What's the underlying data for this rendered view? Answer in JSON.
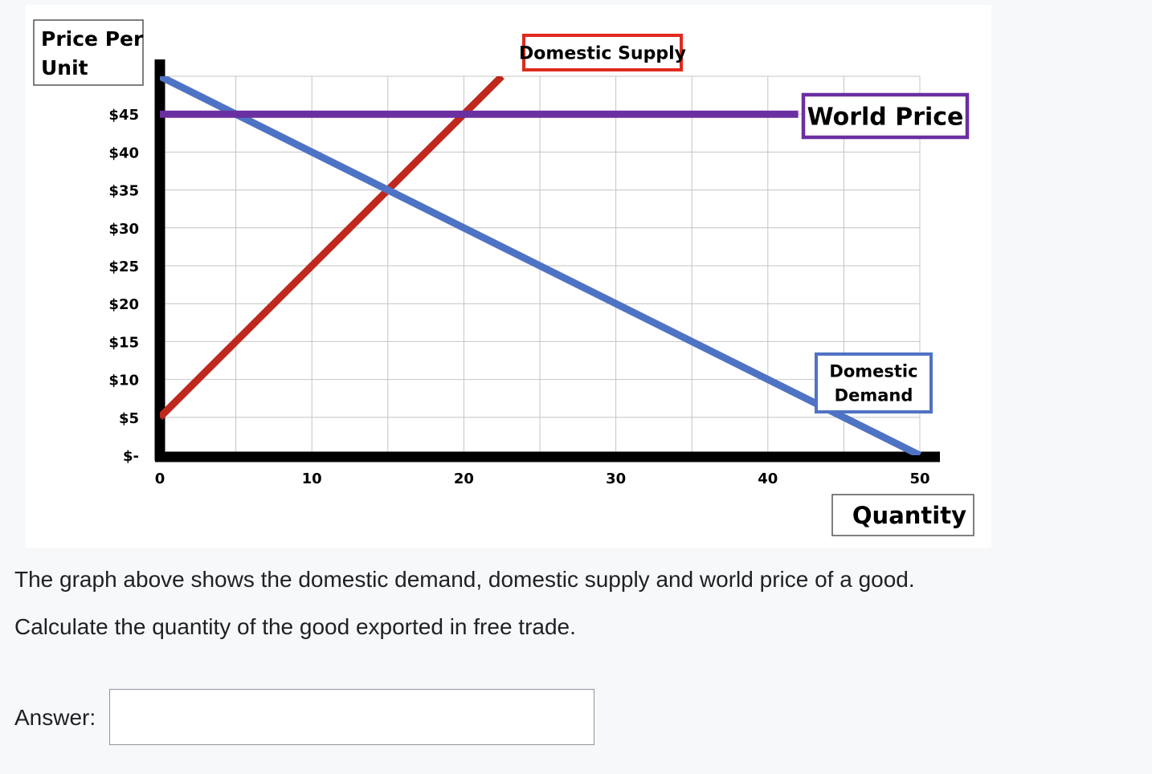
{
  "chart_data": {
    "type": "line",
    "ylabel_lines": [
      "Price Per",
      "Unit"
    ],
    "xlabel": "Quantity",
    "x_ticks": [
      0,
      10,
      20,
      30,
      40,
      50
    ],
    "x_tick_labels": [
      "0",
      "10",
      "20",
      "30",
      "40",
      "50"
    ],
    "y_ticks": [
      0,
      5,
      10,
      15,
      20,
      25,
      30,
      35,
      40,
      45
    ],
    "y_tick_labels": [
      "$-",
      "$5",
      "$10",
      "$15",
      "$20",
      "$25",
      "$30",
      "$35",
      "$40",
      "$45"
    ],
    "xlim": [
      0,
      50
    ],
    "ylim": [
      0,
      50
    ],
    "grid": true,
    "series": [
      {
        "name": "Domestic Supply",
        "color": "#c0281e",
        "x": [
          0,
          22.5
        ],
        "y": [
          5,
          50
        ]
      },
      {
        "name": "Domestic Demand",
        "color": "#4f73c4",
        "x": [
          0,
          50
        ],
        "y": [
          50,
          0
        ]
      },
      {
        "name": "World Price",
        "color": "#6a2fa0",
        "x": [
          0,
          42
        ],
        "y": [
          45,
          45
        ]
      }
    ],
    "label_boxes": [
      {
        "lines": [
          "Domestic Supply"
        ],
        "border": "#e02a1e"
      },
      {
        "lines": [
          "World Price"
        ],
        "border": "#6a2fa0"
      },
      {
        "lines": [
          "Domestic",
          "Demand"
        ],
        "border": "#4f73c4"
      }
    ]
  },
  "question": {
    "line1": "The graph above shows the domestic demand, domestic supply and world price of a good.",
    "line2": "Calculate the quantity of the good exported in free trade."
  },
  "answer": {
    "label": "Answer:",
    "value": ""
  }
}
